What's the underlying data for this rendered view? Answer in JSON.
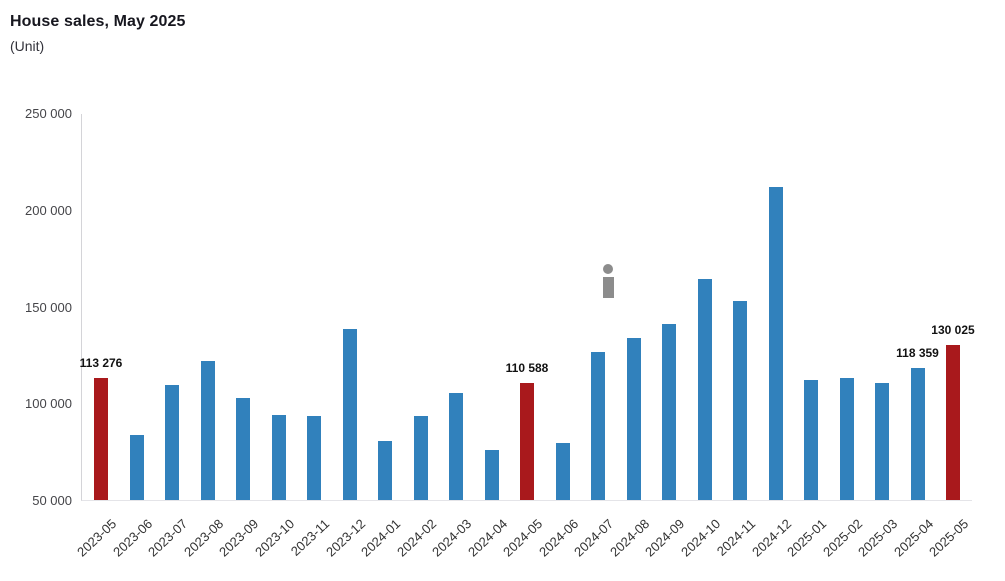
{
  "header": {
    "title": "House sales, May 2025",
    "subtitle": "(Unit)"
  },
  "chart_data": {
    "type": "bar",
    "title": "House sales, May 2025",
    "ylabel": "(Unit)",
    "xlabel": "",
    "ylim": [
      50000,
      250000
    ],
    "grid": false,
    "legend": "none",
    "yticks": [
      {
        "value": 250000,
        "label": "250 000"
      },
      {
        "value": 200000,
        "label": "200 000"
      },
      {
        "value": 150000,
        "label": "150 000"
      },
      {
        "value": 100000,
        "label": "100 000"
      },
      {
        "value": 50000,
        "label": "50 000"
      }
    ],
    "colors": {
      "bar_default": "#3181bc",
      "bar_highlight": "#a9191c",
      "info_icon": "#8c8c8c",
      "axis_line": "#d4d4d8",
      "baseline": "#e4e4e8"
    },
    "bars": [
      {
        "category": "2023-05",
        "value": 113276,
        "highlight": true,
        "data_label": "113 276"
      },
      {
        "category": "2023-06",
        "value": 83600,
        "highlight": false,
        "data_label": null
      },
      {
        "category": "2023-07",
        "value": 109400,
        "highlight": false,
        "data_label": null
      },
      {
        "category": "2023-08",
        "value": 121900,
        "highlight": false,
        "data_label": null
      },
      {
        "category": "2023-09",
        "value": 102500,
        "highlight": false,
        "data_label": null
      },
      {
        "category": "2023-10",
        "value": 94000,
        "highlight": false,
        "data_label": null
      },
      {
        "category": "2023-11",
        "value": 93500,
        "highlight": false,
        "data_label": null
      },
      {
        "category": "2023-12",
        "value": 138400,
        "highlight": false,
        "data_label": null
      },
      {
        "category": "2024-01",
        "value": 80500,
        "highlight": false,
        "data_label": null
      },
      {
        "category": "2024-02",
        "value": 93400,
        "highlight": false,
        "data_label": null
      },
      {
        "category": "2024-03",
        "value": 105300,
        "highlight": false,
        "data_label": null
      },
      {
        "category": "2024-04",
        "value": 75800,
        "highlight": false,
        "data_label": null
      },
      {
        "category": "2024-05",
        "value": 110588,
        "highlight": true,
        "data_label": "110 588"
      },
      {
        "category": "2024-06",
        "value": 79500,
        "highlight": false,
        "data_label": null
      },
      {
        "category": "2024-07",
        "value": 126700,
        "highlight": false,
        "data_label": null
      },
      {
        "category": "2024-08",
        "value": 133700,
        "highlight": false,
        "data_label": null
      },
      {
        "category": "2024-09",
        "value": 141000,
        "highlight": false,
        "data_label": null
      },
      {
        "category": "2024-10",
        "value": 164300,
        "highlight": false,
        "data_label": null
      },
      {
        "category": "2024-11",
        "value": 152800,
        "highlight": false,
        "data_label": null
      },
      {
        "category": "2024-12",
        "value": 211900,
        "highlight": false,
        "data_label": null
      },
      {
        "category": "2025-01",
        "value": 112000,
        "highlight": false,
        "data_label": null
      },
      {
        "category": "2025-02",
        "value": 113100,
        "highlight": false,
        "data_label": null
      },
      {
        "category": "2025-03",
        "value": 110500,
        "highlight": false,
        "data_label": null
      },
      {
        "category": "2025-04",
        "value": 118359,
        "highlight": false,
        "data_label": "118 359"
      },
      {
        "category": "2025-05",
        "value": 130025,
        "highlight": true,
        "data_label": "130 025"
      }
    ],
    "annotations": [
      {
        "type": "info-icon",
        "x_category": "2024-07"
      }
    ]
  }
}
